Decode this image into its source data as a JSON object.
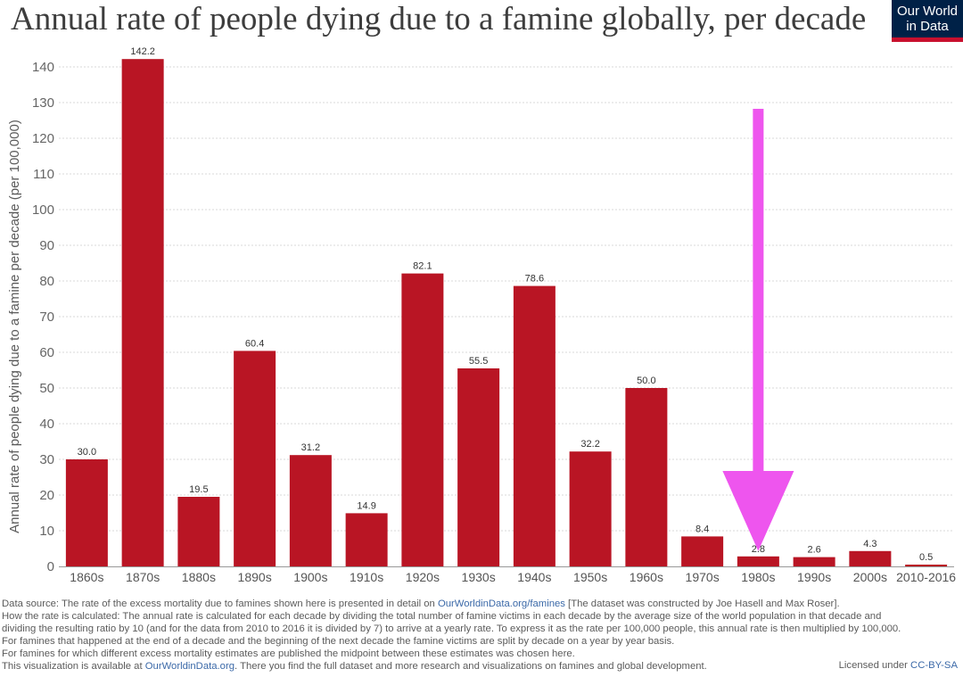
{
  "header": {
    "title": "Annual rate of people dying due to a famine globally, per decade",
    "logo_line1": "Our World",
    "logo_line2": "in Data"
  },
  "colors": {
    "bar": "#b91524",
    "annotation_arrow": "#ee55ee",
    "logo_bg": "#002147",
    "logo_accent": "#c8102e"
  },
  "chart_data": {
    "type": "bar",
    "title": "Annual rate of people dying due to a famine globally, per decade",
    "ylabel": "Annual rate of people dying due to a famine per decade (per 100,000)",
    "xlabel": "",
    "categories": [
      "1860s",
      "1870s",
      "1880s",
      "1890s",
      "1900s",
      "1910s",
      "1920s",
      "1930s",
      "1940s",
      "1950s",
      "1960s",
      "1970s",
      "1980s",
      "1990s",
      "2000s",
      "2010-2016"
    ],
    "values": [
      30.0,
      142.2,
      19.5,
      60.4,
      31.2,
      14.9,
      82.1,
      55.5,
      78.6,
      32.2,
      50.0,
      8.4,
      2.8,
      2.6,
      4.3,
      0.5
    ],
    "value_labels": [
      "30.0",
      "142.2",
      "19.5",
      "60.4",
      "31.2",
      "14.9",
      "82.1",
      "55.5",
      "78.6",
      "32.2",
      "50.0",
      "8.4",
      "2.8",
      "2.6",
      "4.3",
      "0.5"
    ],
    "yticks": [
      0,
      10,
      20,
      30,
      40,
      50,
      60,
      70,
      80,
      90,
      100,
      110,
      120,
      130,
      140
    ],
    "ylim": [
      0,
      145
    ],
    "grid": "horizontal dotted",
    "annotation": {
      "type": "arrow",
      "points_to": "1980s"
    }
  },
  "notes": {
    "source_prefix": "Data source: The rate of the excess mortality due to famines shown here is presented in detail on ",
    "source_link": "OurWorldinData.org/famines",
    "source_suffix": " [The dataset was constructed by Joe Hasell and Max Roser].",
    "method_line1": "How the rate is calculated: The annual rate is calculated for each decade by dividing the total number of famine victims in each decade by the average size of the world population in that decade and",
    "method_line2": "dividing the resulting ratio by 10 (and for the data from 2010 to 2016 it is divided by 7) to arrive at a yearly rate. To express it as the rate per 100,000 people, this annual rate is then multiplied by 100,000.",
    "split_line": "For famines that happened at the end of a decade and the beginning of the next decade the famine victims are split by decade on a year by year basis.",
    "midpoint_line": "For famines for which different excess mortality estimates are published the midpoint between these estimates was chosen here.",
    "available_prefix": "This visualization is available at ",
    "available_link": "OurWorldinData.org",
    "available_suffix": ". There you find the full dataset and more research and visualizations on famines and global development.",
    "license_prefix": "Licensed under ",
    "license_link": "CC-BY-SA"
  }
}
